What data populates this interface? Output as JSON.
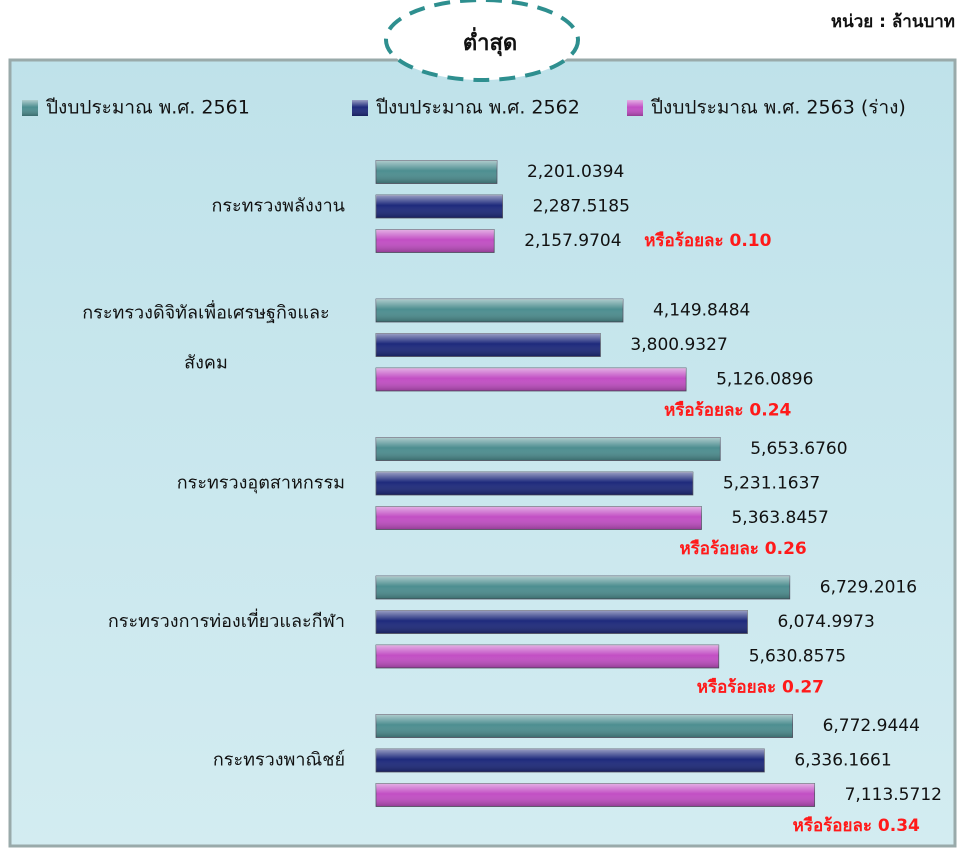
{
  "chart_data": {
    "type": "barh",
    "title": "ต่ำสุด",
    "unit": "หน่วย : ล้านบาท",
    "categories": [
      "กระทรวงพลังงาน",
      [
        "กระทรวงดิจิทัลเพื่อเศรษฐกิจและ",
        "สังคม"
      ],
      "กระทรวงอุตสาหกรรม",
      "กระทรวงการท่องเที่ยวและกีฬา",
      "กระทรวงพาณิชย์"
    ],
    "series": [
      {
        "name": "ปีงบประมาณ พ.ศ. 2561",
        "color": "#4d8e90",
        "values": [
          2201.0394,
          4149.8484,
          5653.676,
          6729.2016,
          6772.9444
        ],
        "value_labels": [
          "2,201.0394",
          "4,149.8484",
          "5,653.6760",
          "6,729.2016",
          "6,772.9444"
        ]
      },
      {
        "name": "ปีงบประมาณ พ.ศ. 2562",
        "color": "#1e2a7c",
        "values": [
          2287.5185,
          3800.9327,
          5231.1637,
          6074.9973,
          6336.1661
        ],
        "value_labels": [
          "2,287.5185",
          "3,800.9327",
          "5,231.1637",
          "6,074.9973",
          "6,336.1661"
        ]
      },
      {
        "name": "ปีงบประมาณ พ.ศ. 2563 (ร่าง)",
        "color": "#c24fc4",
        "values": [
          2157.9704,
          5126.0896,
          5363.8457,
          5630.8575,
          7113.5712
        ],
        "value_labels": [
          "2,157.9704",
          "5,126.0896",
          "5,363.8457",
          "5,630.8575",
          "7,113.5712"
        ]
      }
    ],
    "annotations": [
      "หรือร้อยละ 0.10",
      "หรือร้อยละ 0.24",
      "หรือร้อยละ 0.26",
      "หรือร้อยละ 0.27",
      "หรือร้อยละ 0.34"
    ],
    "xlim": [
      330,
      7800
    ]
  }
}
